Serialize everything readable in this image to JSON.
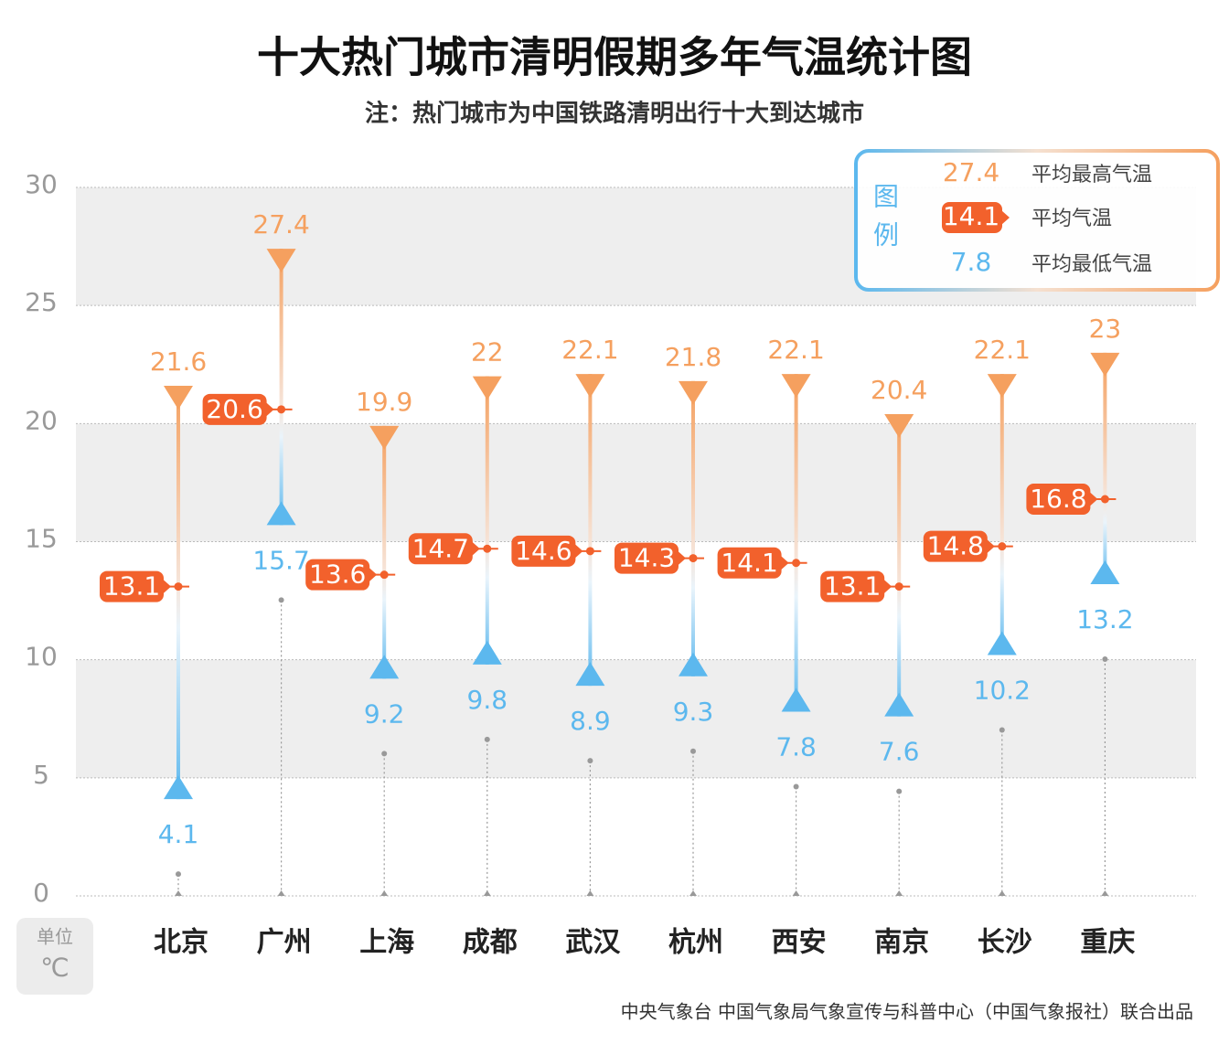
{
  "chart_data": {
    "type": "range",
    "title": "十大热门城市清明假期多年气温统计图",
    "subtitle": "注：热门城市为中国铁路清明出行十大到达城市",
    "unit_label": "单位",
    "unit": "℃",
    "source": "中央气象台 中国气象局气象宣传与科普中心（中国气象报社）联合出品",
    "categories": [
      "北京",
      "广州",
      "上海",
      "成都",
      "武汉",
      "杭州",
      "西安",
      "南京",
      "长沙",
      "重庆"
    ],
    "series": [
      {
        "name": "平均最高气温",
        "color": "#f5a05f",
        "values": [
          21.6,
          27.4,
          19.9,
          22,
          22.1,
          21.8,
          22.1,
          20.4,
          22.1,
          23
        ]
      },
      {
        "name": "平均气温",
        "color": "#f2612c",
        "values": [
          13.1,
          20.6,
          13.6,
          14.7,
          14.6,
          14.3,
          14.1,
          13.1,
          14.8,
          16.8
        ]
      },
      {
        "name": "平均最低气温",
        "color": "#5cb8ee",
        "values": [
          4.1,
          15.7,
          9.2,
          9.8,
          8.9,
          9.3,
          7.8,
          7.6,
          10.2,
          13.2
        ]
      }
    ],
    "legend": {
      "title": "图例",
      "sample_values": [
        27.4,
        14.1,
        7.8
      ],
      "position": "upper right"
    },
    "ylim": [
      0,
      30
    ],
    "yticks": [
      0,
      5,
      10,
      15,
      20,
      25,
      30
    ],
    "grid": true
  }
}
